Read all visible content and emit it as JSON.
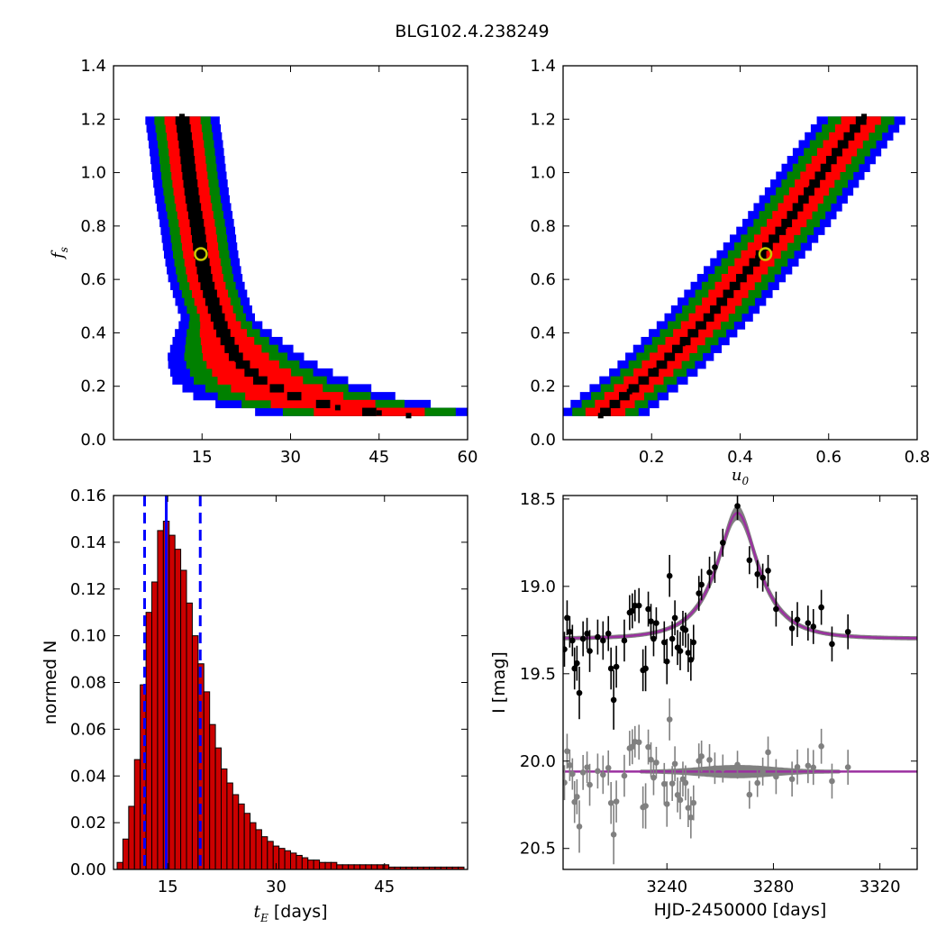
{
  "figure": {
    "title": "BLG102.4.238249"
  },
  "colors": {
    "sigma1": "#000000",
    "sigma2": "#ff0000",
    "sigma3": "#008000",
    "sigma4": "#0000ff",
    "hist": "#cc0000",
    "vline": "#0000ff",
    "model": "#9b30a0",
    "band": "#808080",
    "best": "#c8c800"
  },
  "chart_data": [
    {
      "type": "heatmap",
      "name": "tE-fs",
      "xlabel": "",
      "ylabel": "f_s",
      "xlim": [
        0,
        60
      ],
      "ylim": [
        0.0,
        1.4
      ],
      "xticks": [
        15,
        30,
        45,
        60
      ],
      "yticks": [
        "0.0",
        "0.2",
        "0.4",
        "0.6",
        "0.8",
        "1.0",
        "1.2",
        "1.4"
      ],
      "best_fit": {
        "tE": 14.8,
        "fs": 0.695
      },
      "ridge": [
        [
          11.6,
          1.21
        ],
        [
          12.3,
          1.1
        ],
        [
          12.8,
          1.0
        ],
        [
          13.4,
          0.9
        ],
        [
          14.2,
          0.8
        ],
        [
          14.8,
          0.7
        ],
        [
          15.6,
          0.6
        ],
        [
          17.0,
          0.5
        ],
        [
          18.6,
          0.4
        ],
        [
          21.0,
          0.3
        ],
        [
          25.0,
          0.22
        ],
        [
          31.0,
          0.16
        ],
        [
          38.0,
          0.12
        ],
        [
          45.0,
          0.1
        ],
        [
          50.0,
          0.09
        ]
      ],
      "widths_1sigma_2sigma_3sigma_4sigma": [
        1.2,
        3.4,
        5.3,
        7.0
      ]
    },
    {
      "type": "heatmap",
      "name": "u0-fs",
      "xlabel": "u_0",
      "ylabel": "",
      "xlim": [
        0.0,
        0.8
      ],
      "ylim": [
        0.0,
        1.4
      ],
      "xticks": [
        "0.2",
        "0.4",
        "0.6",
        "0.8"
      ],
      "yticks": [
        "0.0",
        "0.2",
        "0.4",
        "0.6",
        "0.8",
        "1.0",
        "1.2",
        "1.4"
      ],
      "best_fit": {
        "u0": 0.457,
        "fs": 0.695
      },
      "ridge": [
        [
          0.085,
          0.09
        ],
        [
          0.15,
          0.18
        ],
        [
          0.21,
          0.26
        ],
        [
          0.27,
          0.36
        ],
        [
          0.33,
          0.46
        ],
        [
          0.39,
          0.58
        ],
        [
          0.44,
          0.68
        ],
        [
          0.5,
          0.8
        ],
        [
          0.56,
          0.94
        ],
        [
          0.62,
          1.08
        ],
        [
          0.68,
          1.21
        ]
      ],
      "widths_1sigma_2sigma_3sigma_4sigma": [
        0.012,
        0.045,
        0.075,
        0.1
      ]
    },
    {
      "type": "bar",
      "name": "tE-histogram",
      "xlabel": "t_E [days]",
      "ylabel": "normed N",
      "xlim": [
        7.5,
        56.5
      ],
      "ylim": [
        0.0,
        0.16
      ],
      "xticks": [
        15,
        30,
        45
      ],
      "yticks": [
        "0.00",
        "0.02",
        "0.04",
        "0.06",
        "0.08",
        "0.10",
        "0.12",
        "0.14",
        "0.16"
      ],
      "bin_width": 0.8,
      "bin_start": 8.0,
      "values": [
        0.003,
        0.013,
        0.027,
        0.047,
        0.079,
        0.11,
        0.123,
        0.145,
        0.149,
        0.143,
        0.137,
        0.128,
        0.114,
        0.1,
        0.088,
        0.076,
        0.062,
        0.052,
        0.043,
        0.037,
        0.032,
        0.028,
        0.024,
        0.02,
        0.017,
        0.014,
        0.012,
        0.01,
        0.009,
        0.008,
        0.007,
        0.006,
        0.005,
        0.004,
        0.004,
        0.003,
        0.003,
        0.003,
        0.002,
        0.002,
        0.002,
        0.002,
        0.002,
        0.002,
        0.002,
        0.002,
        0.002,
        0.001,
        0.001,
        0.001,
        0.001,
        0.001,
        0.001,
        0.001,
        0.001,
        0.001,
        0.001,
        0.001,
        0.001,
        0.001
      ],
      "vlines": {
        "median": 14.8,
        "lower": 11.8,
        "upper": 19.5
      }
    },
    {
      "type": "scatter",
      "name": "light-curve",
      "xlabel": "HJD-2450000 [days]",
      "ylabel": "I [mag]",
      "xlim": [
        3201,
        3334
      ],
      "ylim": [
        20.62,
        18.48
      ],
      "xticks": [
        3240,
        3280,
        3320
      ],
      "yticks": [
        "18.5",
        "19.0",
        "19.5",
        "20.0",
        "20.5"
      ],
      "model": {
        "t0": 3266.5,
        "tE": 14.8,
        "u0": 0.457,
        "fs": 0.695,
        "I0": 19.3
      },
      "residual_offset": 20.06,
      "points": [
        [
          3201.5,
          19.36,
          0.1
        ],
        [
          3202.5,
          19.18,
          0.1
        ],
        [
          3203.5,
          19.26,
          0.09
        ],
        [
          3204.5,
          19.31,
          0.09
        ],
        [
          3205.3,
          19.47,
          0.12
        ],
        [
          3206.2,
          19.44,
          0.1
        ],
        [
          3207.1,
          19.61,
          0.15
        ],
        [
          3208.5,
          19.3,
          0.1
        ],
        [
          3210,
          19.27,
          0.09
        ],
        [
          3211,
          19.37,
          0.12
        ],
        [
          3214,
          19.29,
          0.1
        ],
        [
          3216,
          19.31,
          0.11
        ],
        [
          3218,
          19.27,
          0.1
        ],
        [
          3219,
          19.47,
          0.12
        ],
        [
          3220,
          19.65,
          0.17
        ],
        [
          3221,
          19.46,
          0.12
        ],
        [
          3224,
          19.31,
          0.12
        ],
        [
          3226,
          19.15,
          0.1
        ],
        [
          3227,
          19.14,
          0.1
        ],
        [
          3228,
          19.11,
          0.09
        ],
        [
          3229.5,
          19.11,
          0.1
        ],
        [
          3231,
          19.48,
          0.12
        ],
        [
          3232,
          19.47,
          0.13
        ],
        [
          3233,
          19.13,
          0.1
        ],
        [
          3234,
          19.2,
          0.1
        ],
        [
          3235,
          19.3,
          0.1
        ],
        [
          3236,
          19.21,
          0.09
        ],
        [
          3239,
          19.32,
          0.12
        ],
        [
          3240,
          19.43,
          0.13
        ],
        [
          3241,
          18.94,
          0.12
        ],
        [
          3242,
          19.3,
          0.1
        ],
        [
          3243,
          19.18,
          0.1
        ],
        [
          3244,
          19.35,
          0.1
        ],
        [
          3245,
          19.37,
          0.11
        ],
        [
          3246,
          19.24,
          0.1
        ],
        [
          3247,
          19.25,
          0.1
        ],
        [
          3248,
          19.38,
          0.11
        ],
        [
          3249,
          19.42,
          0.12
        ],
        [
          3250,
          19.32,
          0.1
        ],
        [
          3252,
          19.04,
          0.1
        ],
        [
          3253,
          18.99,
          0.09
        ],
        [
          3256,
          18.92,
          0.09
        ],
        [
          3258,
          18.89,
          0.09
        ],
        [
          3261,
          18.75,
          0.08
        ],
        [
          3266.5,
          18.54,
          0.08
        ],
        [
          3271,
          18.85,
          0.08
        ],
        [
          3274,
          18.93,
          0.08
        ],
        [
          3276,
          18.95,
          0.08
        ],
        [
          3278,
          18.91,
          0.09
        ],
        [
          3281,
          19.13,
          0.1
        ],
        [
          3287,
          19.24,
          0.1
        ],
        [
          3289,
          19.19,
          0.1
        ],
        [
          3293,
          19.21,
          0.1
        ],
        [
          3295,
          19.23,
          0.1
        ],
        [
          3298,
          19.12,
          0.1
        ],
        [
          3302,
          19.33,
          0.1
        ],
        [
          3308,
          19.26,
          0.1
        ]
      ]
    }
  ]
}
